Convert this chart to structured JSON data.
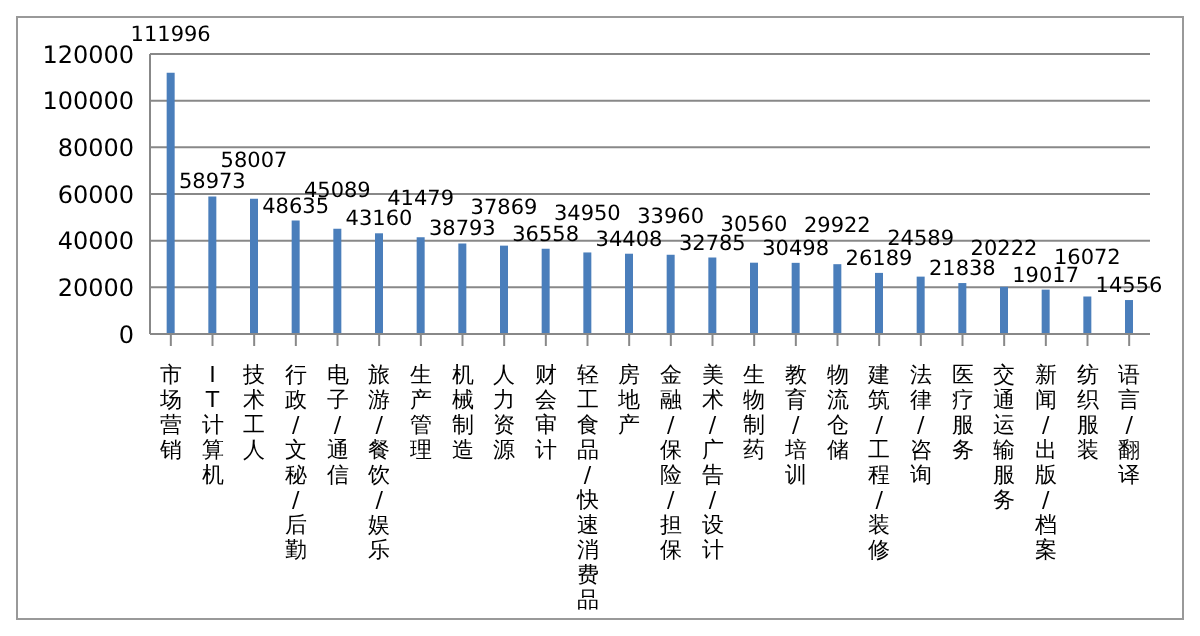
{
  "chart_data": {
    "type": "bar",
    "categories": [
      "市场营销",
      "IT计算机",
      "技术工人",
      "行政/文秘/后勤",
      "电子/通信",
      "旅游/餐饮/娱乐",
      "生产管理",
      "机械制造",
      "人力资源",
      "财会审计",
      "轻工食品/快速消费品",
      "房地产",
      "金融/保险/担保",
      "美术/广告/设计",
      "生物制药",
      "教育/培训",
      "物流仓储",
      "建筑/工程/装修",
      "法律/咨询",
      "医疗服务",
      "交通运输服务",
      "新闻/出版/档案",
      "纺织服装",
      "语言/翻译"
    ],
    "values": [
      111996,
      58973,
      58007,
      48635,
      45089,
      43160,
      41479,
      38793,
      37869,
      36558,
      34950,
      34408,
      33960,
      32785,
      30560,
      30498,
      29922,
      26189,
      24589,
      21838,
      20222,
      19017,
      16072,
      14556
    ],
    "color": "#4a7ebb",
    "ylim": [
      0,
      120000
    ],
    "yticks": [
      0,
      20000,
      40000,
      60000,
      80000,
      100000,
      120000
    ],
    "grid": "y",
    "data_labels": true,
    "legend": false
  }
}
